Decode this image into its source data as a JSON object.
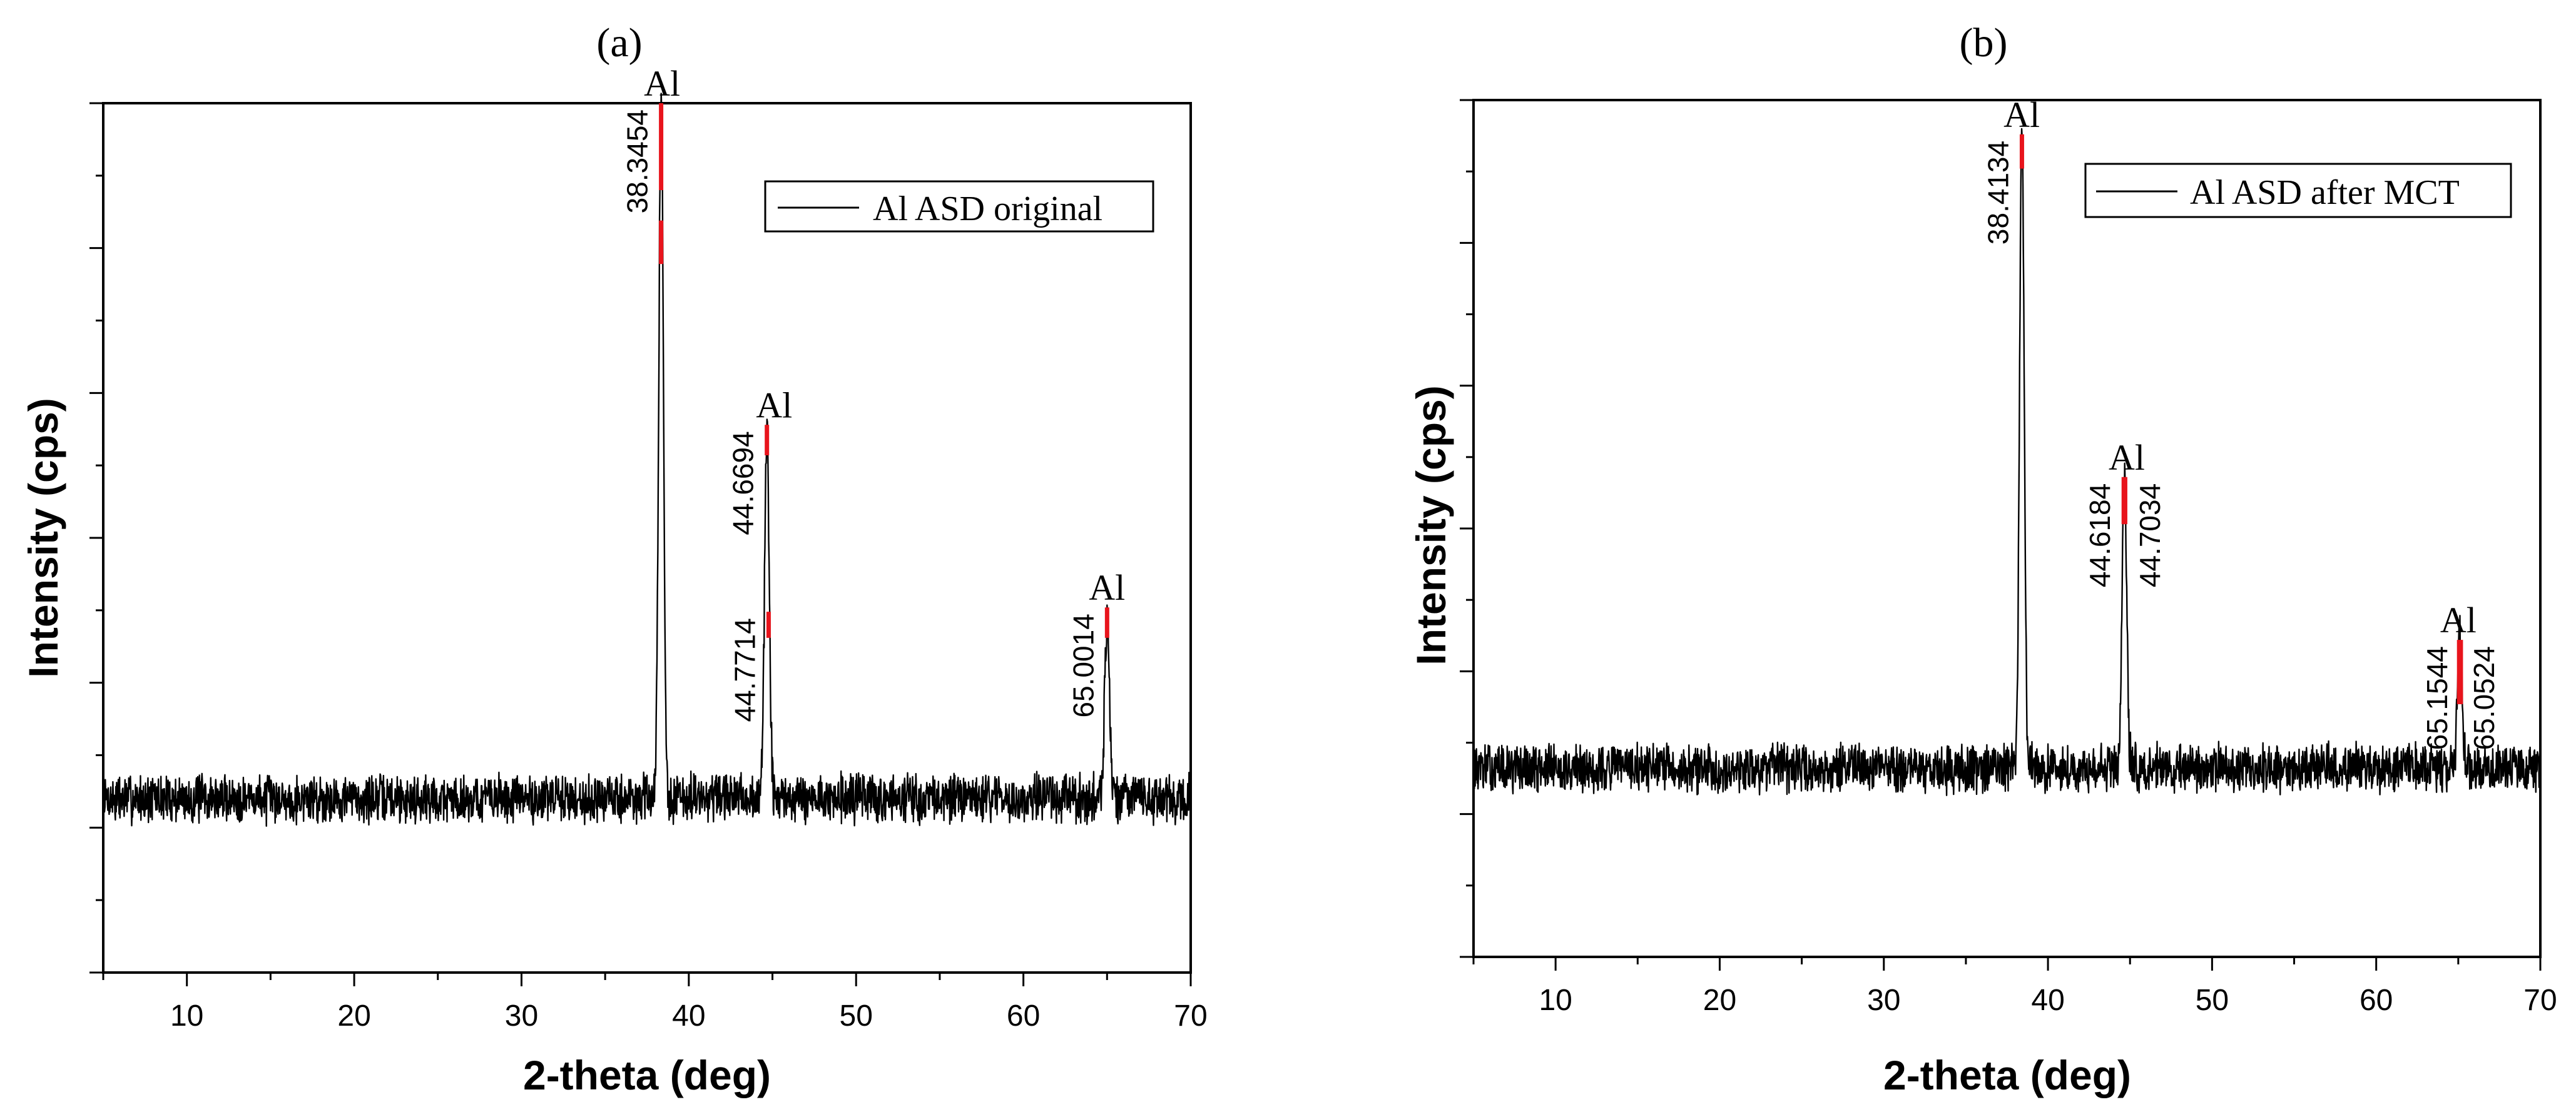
{
  "figure": {
    "colors": {
      "trace": "#000000",
      "marker": "#e8141c",
      "axis": "#000000"
    }
  },
  "chart_data": [
    {
      "type": "line",
      "panel_label": "(a)",
      "xlabel": "2-theta (deg)",
      "ylabel": "Intensity (cps)",
      "xlim": [
        5,
        70
      ],
      "x_ticks": [
        10,
        20,
        30,
        40,
        50,
        60,
        70
      ],
      "y_ticks_labeled": false,
      "grid": false,
      "legend_position": "top-right",
      "series": [
        {
          "name": "Al ASD original",
          "baseline": 0.2,
          "peaks": [
            {
              "x": 38.3454,
              "height": 0.805
            },
            {
              "x": 44.6694,
              "height": 0.42
            },
            {
              "x": 65.0014,
              "height": 0.205
            }
          ]
        }
      ],
      "peak_markers": [
        {
          "x": 38.3454,
          "top": 1.0,
          "bottom": 0.9
        },
        {
          "x": 38.3454,
          "top": 0.865,
          "bottom": 0.815
        },
        {
          "x": 44.6694,
          "top": 0.63,
          "bottom": 0.595
        },
        {
          "x": 44.7714,
          "top": 0.415,
          "bottom": 0.385
        },
        {
          "x": 65.0014,
          "top": 0.42,
          "bottom": 0.385
        }
      ],
      "annotations": [
        {
          "x": 38.3454,
          "top": 1.0,
          "value": "38.3454"
        },
        {
          "x": 44.6694,
          "top": 0.63,
          "value": "44.6694"
        },
        {
          "x": 44.7714,
          "top": 0.415,
          "value": "44.7714"
        },
        {
          "x": 65.0014,
          "top": 0.42,
          "value": "65.0014"
        }
      ],
      "phase_labels": [
        {
          "x": 38.4,
          "y": 1.0,
          "text": "Al"
        },
        {
          "x": 45.1,
          "y": 0.63,
          "text": "Al"
        },
        {
          "x": 65.0,
          "y": 0.42,
          "text": "Al"
        }
      ]
    },
    {
      "type": "line",
      "panel_label": "(b)",
      "xlabel": "2-theta (deg)",
      "ylabel": "Intensity (cps)",
      "xlim": [
        5,
        70
      ],
      "x_ticks": [
        10,
        20,
        30,
        40,
        50,
        60,
        70
      ],
      "y_ticks_labeled": false,
      "grid": false,
      "legend_position": "top-right",
      "series": [
        {
          "name": "Al ASD after MCT",
          "baseline": 0.22,
          "peaks": [
            {
              "x": 38.4134,
              "height": 0.74
            },
            {
              "x": 44.66,
              "height": 0.34
            },
            {
              "x": 65.1,
              "height": 0.16
            }
          ]
        }
      ],
      "peak_markers": [
        {
          "x": 38.4134,
          "top": 0.96,
          "bottom": 0.92
        },
        {
          "x": 44.6184,
          "top": 0.56,
          "bottom": 0.505
        },
        {
          "x": 44.7034,
          "top": 0.56,
          "bottom": 0.505
        },
        {
          "x": 65.1544,
          "top": 0.37,
          "bottom": 0.295
        },
        {
          "x": 65.0524,
          "top": 0.37,
          "bottom": 0.295
        }
      ],
      "annotations": [
        {
          "x": 38.4134,
          "top": 0.96,
          "value": "38.4134",
          "side": "left"
        },
        {
          "x": 44.6184,
          "top": 0.56,
          "value": "44.6184",
          "side": "left"
        },
        {
          "x": 44.7034,
          "top": 0.56,
          "value": "44.7034",
          "side": "right"
        },
        {
          "x": 65.1544,
          "top": 0.37,
          "value": "65.1544",
          "side": "left"
        },
        {
          "x": 65.0524,
          "top": 0.37,
          "value": "65.0524",
          "side": "right"
        }
      ],
      "phase_labels": [
        {
          "x": 38.4,
          "y": 0.96,
          "text": "Al"
        },
        {
          "x": 44.8,
          "y": 0.56,
          "text": "Al"
        },
        {
          "x": 65.0,
          "y": 0.37,
          "text": "Al"
        }
      ]
    }
  ]
}
